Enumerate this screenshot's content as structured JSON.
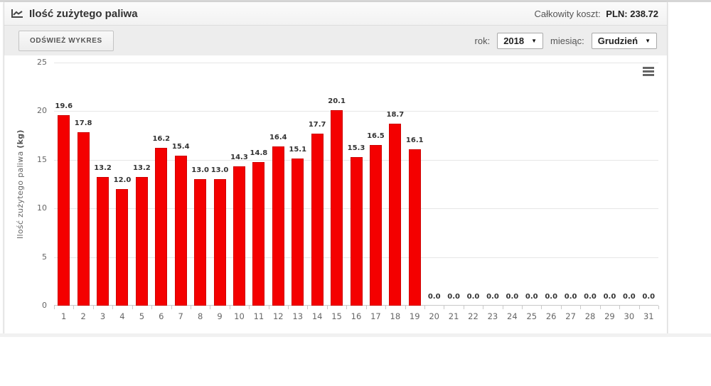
{
  "header": {
    "title": "Ilość zużytego paliwa",
    "total_cost_label": "Całkowity koszt:",
    "total_cost_value": "PLN: 238.72"
  },
  "toolbar": {
    "refresh_button": "ODŚWIEŻ WYKRES",
    "year_label": "rok:",
    "year_value": "2018",
    "month_label": "miesiąc:",
    "month_value": "Grudzień",
    "select_arrow": "▼"
  },
  "icons": {
    "header_icon": "line-chart-icon",
    "chart_menu_icon": "hamburger-menu-icon"
  },
  "colors": {
    "bar": "#f40000",
    "bar_border": "#cf0000",
    "grid": "#e6e6e6",
    "axis_line": "#c9c9c9",
    "tick_label": "#666666",
    "data_label": "#333333"
  },
  "chart_data": {
    "type": "bar",
    "title": "",
    "xlabel": "",
    "ylabel": "Ilość zużytego paliwa",
    "ylabel_unit": "(kg)",
    "categories": [
      1,
      2,
      3,
      4,
      5,
      6,
      7,
      8,
      9,
      10,
      11,
      12,
      13,
      14,
      15,
      16,
      17,
      18,
      19,
      20,
      21,
      22,
      23,
      24,
      25,
      26,
      27,
      28,
      29,
      30,
      31
    ],
    "values": [
      19.6,
      17.8,
      13.2,
      12.0,
      13.2,
      16.2,
      15.4,
      13.0,
      13.0,
      14.3,
      14.8,
      16.4,
      15.1,
      17.7,
      20.1,
      15.3,
      16.5,
      18.7,
      16.1,
      0.0,
      0.0,
      0.0,
      0.0,
      0.0,
      0.0,
      0.0,
      0.0,
      0.0,
      0.0,
      0.0,
      0.0
    ],
    "ylim": [
      0,
      25
    ],
    "yticks": [
      0,
      5,
      10,
      15,
      20,
      25
    ],
    "grid": true,
    "legend": false,
    "data_labels": true
  }
}
